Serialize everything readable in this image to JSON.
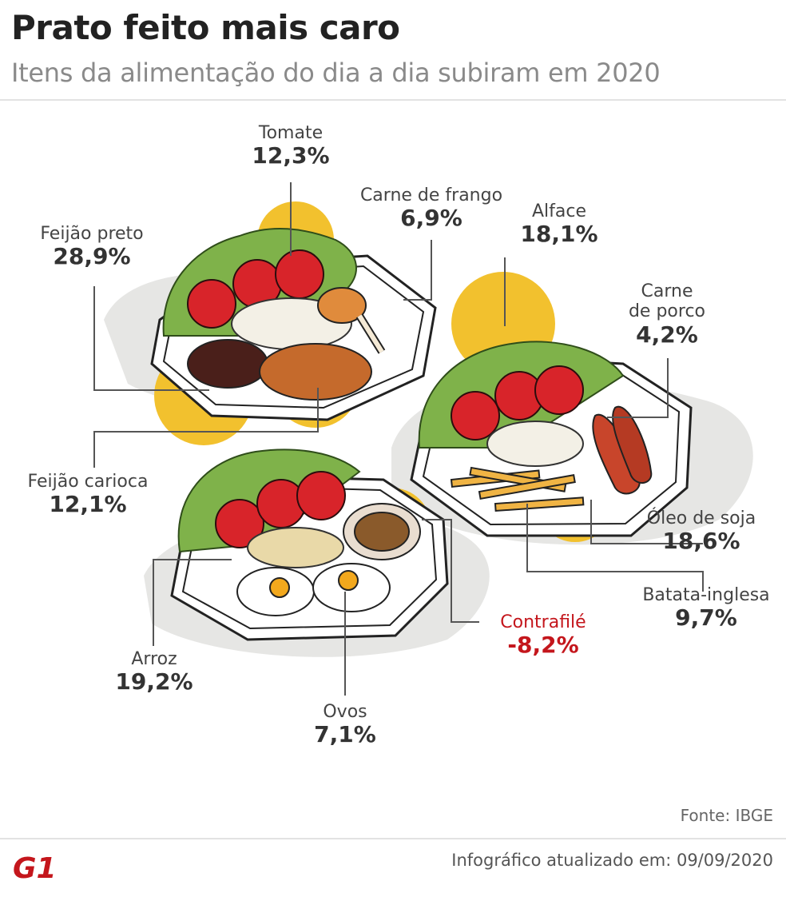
{
  "header": {
    "title": "Prato feito mais caro",
    "subtitle": "Itens da alimentação do dia a dia subiram em 2020"
  },
  "items": [
    {
      "name": "Tomate",
      "value": "12,3%"
    },
    {
      "name": "Carne de frango",
      "value": "6,9%"
    },
    {
      "name": "Alface",
      "value": "18,1%"
    },
    {
      "name": "Feijão preto",
      "value": "28,9%"
    },
    {
      "name": "Carne de porco",
      "name_line1": "Carne",
      "name_line2": "de porco",
      "value": "4,2%"
    },
    {
      "name": "Feijão carioca",
      "value": "12,1%"
    },
    {
      "name": "Óleo de soja",
      "value": "18,6%"
    },
    {
      "name": "Batata-inglesa",
      "value": "9,7%"
    },
    {
      "name": "Contrafilé",
      "value": "-8,2%"
    },
    {
      "name": "Arroz",
      "value": "19,2%"
    },
    {
      "name": "Ovos",
      "value": "7,1%"
    }
  ],
  "footer": {
    "source": "Fonte: IBGE",
    "updated": "Infográfico atualizado em: 09/09/2020",
    "logo_text": "G1"
  },
  "colors": {
    "accent_yellow": "#f2c12e",
    "negative_red": "#c4161c",
    "logo_red": "#c4161c"
  }
}
